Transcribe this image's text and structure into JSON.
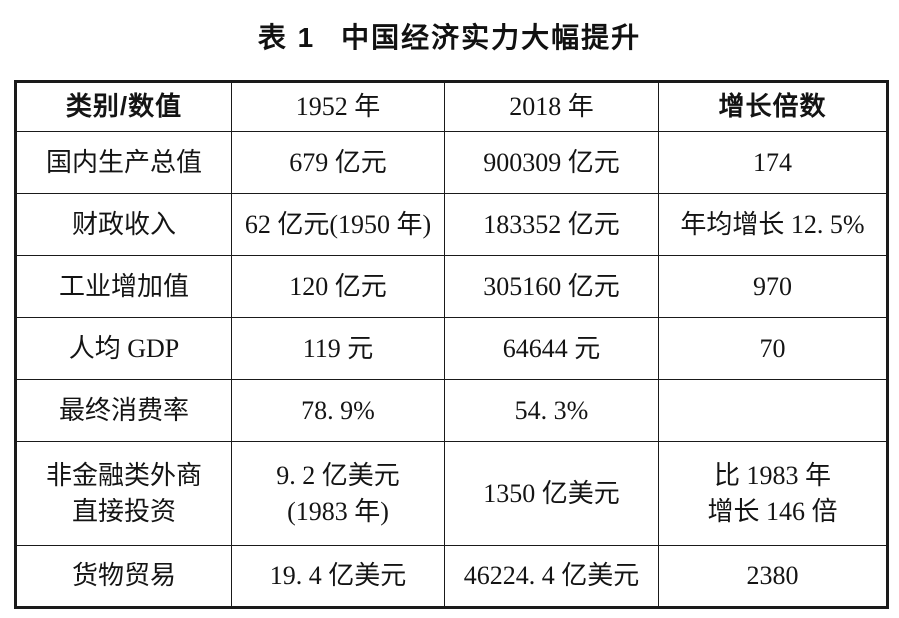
{
  "page": {
    "background": "#ffffff",
    "text_color": "#141414",
    "border_color": "#1a1a1a"
  },
  "header": {
    "table_label": "表 1",
    "title": "中国经济实力大幅提升"
  },
  "table": {
    "columns": [
      "类别/数值",
      "1952 年",
      "2018 年",
      "增长倍数"
    ],
    "rows": [
      [
        "国内生产总值",
        "679 亿元",
        "900309 亿元",
        "174"
      ],
      [
        "财政收入",
        "62 亿元(1950 年)",
        "183352 亿元",
        "年均增长 12. 5%"
      ],
      [
        "工业增加值",
        "120 亿元",
        "305160 亿元",
        "970"
      ],
      [
        "人均 GDP",
        "119 元",
        "64644 元",
        "70"
      ],
      [
        "最终消费率",
        "78. 9%",
        "54. 3%",
        ""
      ],
      [
        "非金融类外商\n直接投资",
        "9. 2 亿美元\n(1983 年)",
        "1350 亿美元",
        "比 1983 年\n增长 146 倍"
      ],
      [
        "货物贸易",
        "19. 4 亿美元",
        "46224. 4 亿美元",
        "2380"
      ]
    ]
  }
}
